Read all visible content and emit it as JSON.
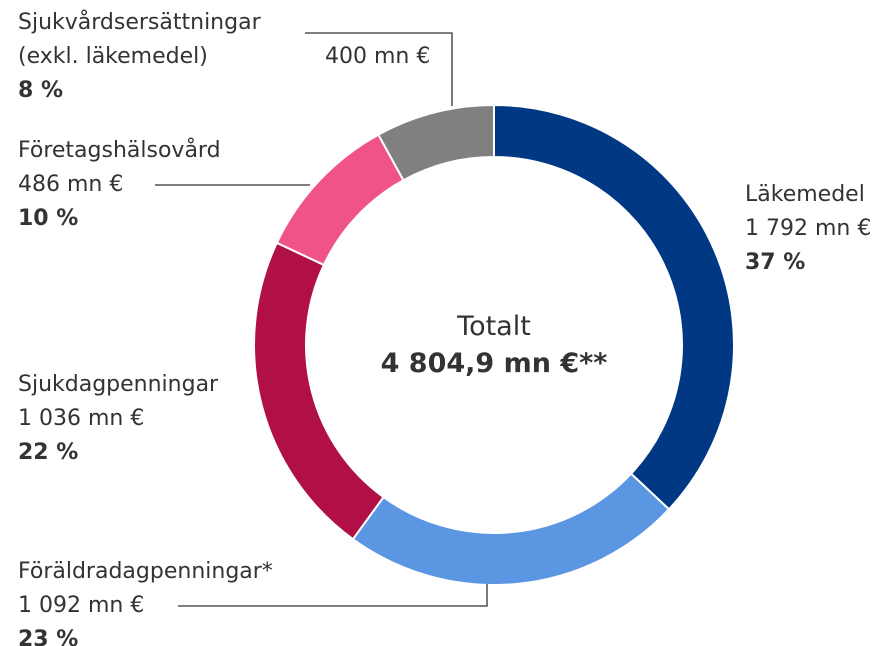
{
  "chart_data": {
    "type": "donut",
    "categories": [
      "Läkemedel",
      "Föräldradagpenningar*",
      "Sjukdagpenningar",
      "Företagshälsovård",
      "Sjukvårdsersättningar (exkl. läkemedel)"
    ],
    "values": [
      37,
      23,
      22,
      10,
      8
    ],
    "value_labels": [
      "37 %",
      "23 %",
      "22 %",
      "10 %",
      "8 %"
    ],
    "amount_labels": [
      "1 792 mn €",
      "1 092 mn €",
      "1 036 mn €",
      "486 mn €",
      "400 mn €"
    ],
    "colors": [
      "#003883",
      "#5b96e3",
      "#b11046",
      "#f0538a",
      "#808080"
    ],
    "center_title": "Totalt",
    "center_value": "4 804,9 mn €**"
  }
}
